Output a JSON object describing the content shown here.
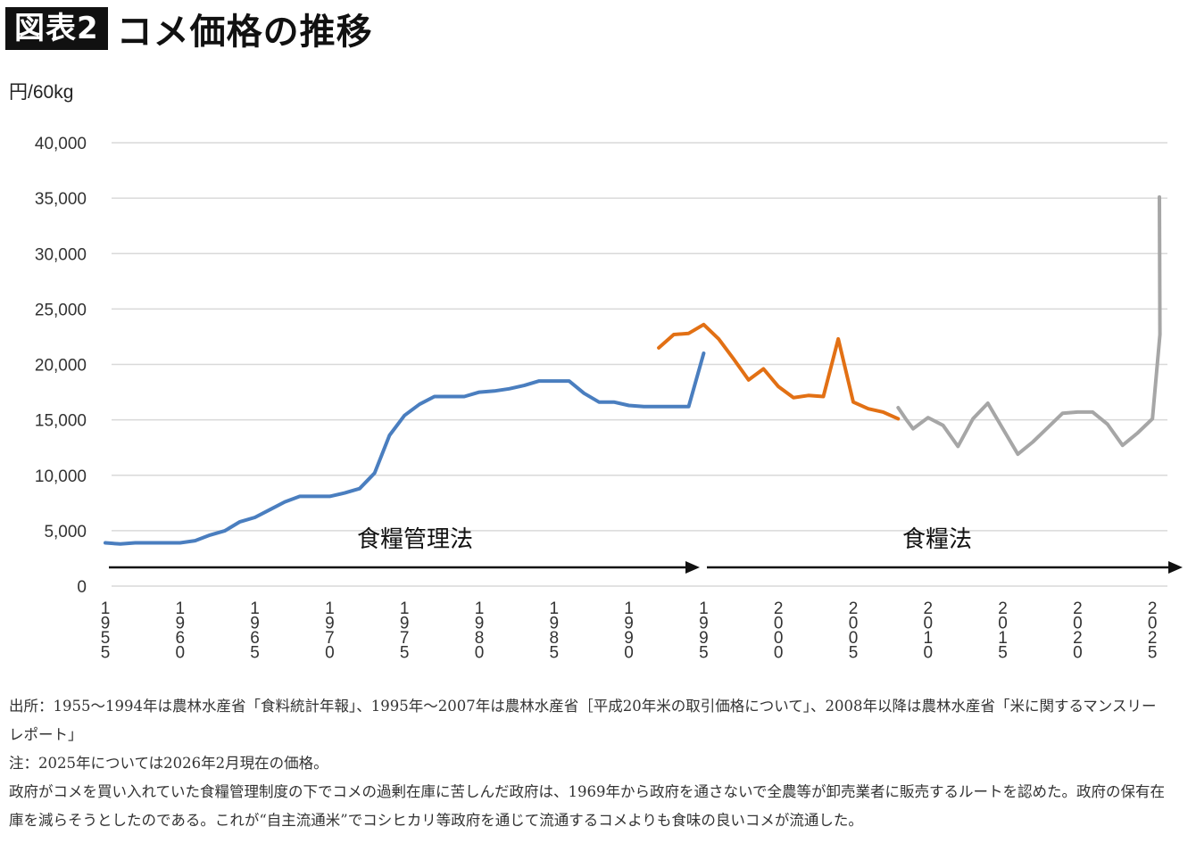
{
  "header": {
    "badge": "図表2",
    "title": "コメ価格の推移"
  },
  "chart_data": {
    "type": "line",
    "ylabel": "円/60kg",
    "ylim": [
      0,
      40000
    ],
    "yticks": [
      0,
      5000,
      10000,
      15000,
      20000,
      25000,
      30000,
      35000,
      40000
    ],
    "ytick_labels": [
      "0",
      "5,000",
      "10,000",
      "15,000",
      "20,000",
      "25,000",
      "30,000",
      "35,000",
      "40,000"
    ],
    "xlim": [
      1955,
      2025
    ],
    "xticks": [
      1955,
      1960,
      1965,
      1970,
      1975,
      1980,
      1985,
      1990,
      1995,
      2000,
      2005,
      2010,
      2015,
      2020,
      2025
    ],
    "grid": "horizontal",
    "colors": {
      "series1": "#4a7ebf",
      "series2": "#e27014",
      "series3": "#a6a6a6"
    },
    "series": [
      {
        "x": [
          1955,
          1956,
          1957,
          1958,
          1959,
          1960,
          1961,
          1962,
          1963,
          1964,
          1965,
          1966,
          1967,
          1968,
          1969,
          1970,
          1971,
          1972,
          1973,
          1974,
          1975,
          1976,
          1977,
          1978,
          1979,
          1980,
          1981,
          1982,
          1983,
          1984,
          1985,
          1986,
          1987,
          1988,
          1989,
          1990,
          1991,
          1992,
          1993,
          1994,
          1995
        ],
        "values": [
          3900,
          3800,
          3900,
          3900,
          3900,
          3900,
          4100,
          4600,
          5000,
          5800,
          6200,
          6900,
          7600,
          8100,
          8100,
          8100,
          8400,
          8800,
          10200,
          13600,
          15400,
          16400,
          17100,
          17100,
          17100,
          17500,
          17600,
          17800,
          18100,
          18500,
          18500,
          18500,
          17400,
          16600,
          16600,
          16300,
          16200,
          16200,
          16200,
          16200,
          21000
        ]
      },
      {
        "x": [
          1992,
          1993,
          1994,
          1995,
          1996,
          1997,
          1998,
          1999,
          2000,
          2001,
          2002,
          2003,
          2004,
          2005,
          2006,
          2007,
          2008
        ],
        "values": [
          21500,
          22700,
          22800,
          23600,
          22300,
          20500,
          18600,
          19600,
          18000,
          17000,
          17200,
          17100,
          22300,
          16600,
          16000,
          15700,
          15100
        ]
      },
      {
        "x": [
          2008,
          2008.5,
          2009,
          2010,
          2011,
          2012,
          2013,
          2014,
          2015,
          2016,
          2017,
          2018,
          2019,
          2020,
          2021,
          2022,
          2023,
          2024,
          2025
        ],
        "values": [
          16100,
          15100,
          14200,
          15200,
          14500,
          12600,
          15100,
          16500,
          14200,
          11900,
          13000,
          14300,
          15600,
          15700,
          15700,
          14600,
          12700,
          13800,
          15100
        ]
      }
    ],
    "series_extra": {
      "series3_tail_x": [
        2025,
        2025.5,
        2026
      ],
      "series3_tail_values": [
        15100,
        22700,
        35100
      ]
    },
    "annotations": [
      {
        "text": "食糧管理法",
        "x_from": 1955,
        "x_to": 1995
      },
      {
        "text": "食糧法",
        "x_from": 1995,
        "x_to": 2026
      }
    ]
  },
  "notes": {
    "line1": "出所：1955～1994年は農林水産省「食料統計年報」、1995年～2007年は農林水産省［平成20年米の取引価格について」、2008年以降は農林水産省「米に関するマンスリーレポート」",
    "line2": "注：2025年については2026年2月現在の価格。",
    "line3": "政府がコメを買い入れていた食糧管理制度の下でコメの過剰在庫に苦しんだ政府は、1969年から政府を通さないで全農等が卸売業者に販売するルートを認めた。政府の保有在庫を減らそうとしたのである。これが“自主流通米”でコシヒカリ等政府を通じて流通するコメよりも食味の良いコメが流通した。"
  }
}
